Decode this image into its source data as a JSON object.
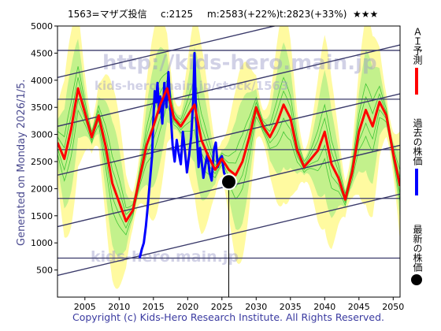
{
  "header": {
    "code_name": "1563=マザズ投信",
    "current": "c:2125",
    "mid": "m:2583(+22%)",
    "target": "t:2823(+33%)",
    "stars": "★★★"
  },
  "side_left": "Generated on Monday 2026/1/5.",
  "watermarks": [
    "http://kids-hero.main.jp",
    "kids-hero.main.jp/stock/1563",
    "kids-hero.main.jp"
  ],
  "legend": {
    "ai": "ＡＩ予測",
    "past": "過去の株価",
    "latest": "最新の株価"
  },
  "footer": "Copyright (c) Kids-Hero Research Institute. All Rights Reserved.",
  "colors": {
    "ai": "#ff0000",
    "past": "#0000ff",
    "latest": "#000000",
    "band_light": "#fffaa0",
    "band_green": "#b8ee88",
    "band_line": "#22bb22",
    "trend": "#3a3a6a",
    "grid": "#555588"
  },
  "chart_data": {
    "type": "line",
    "xlim": [
      2001,
      2051
    ],
    "ylim": [
      0,
      5000
    ],
    "x_ticks": [
      2005,
      2010,
      2015,
      2020,
      2025,
      2030,
      2035,
      2040,
      2045,
      2050
    ],
    "y_ticks": [
      500,
      1000,
      1500,
      2000,
      2500,
      3000,
      3500,
      4000,
      4500,
      5000
    ],
    "latest_point": {
      "x": 2026.0,
      "y": 2125
    },
    "series": [
      {
        "key": "past",
        "x": [
          2013.0,
          2013.3,
          2013.6,
          2013.9,
          2014.2,
          2014.5,
          2014.8,
          2015.0,
          2015.2,
          2015.4,
          2015.6,
          2015.8,
          2016.0,
          2016.3,
          2016.6,
          2016.9,
          2017.2,
          2017.5,
          2017.8,
          2018.1,
          2018.4,
          2018.7,
          2019.0,
          2019.3,
          2019.6,
          2019.9,
          2020.2,
          2020.5,
          2020.8,
          2021.0,
          2021.2,
          2021.4,
          2021.6,
          2021.8,
          2022.0,
          2022.3,
          2022.6,
          2022.9,
          2023.2,
          2023.5,
          2023.8,
          2024.1,
          2024.4,
          2024.7,
          2025.0,
          2025.3,
          2025.6,
          2026.0
        ],
        "values": [
          720,
          880,
          1000,
          1300,
          1700,
          2150,
          2600,
          3300,
          3800,
          3600,
          3950,
          3400,
          3700,
          3200,
          3950,
          3500,
          4150,
          3400,
          2800,
          2500,
          2900,
          2650,
          2450,
          3050,
          2700,
          2300,
          2600,
          2950,
          3600,
          4500,
          3500,
          2850,
          2400,
          2750,
          2550,
          2200,
          2450,
          2650,
          2300,
          2150,
          2700,
          2850,
          2400,
          2550,
          2600,
          2300,
          2200,
          2125
        ]
      },
      {
        "key": "ai",
        "x": [
          2001,
          2002,
          2003,
          2004,
          2005,
          2006,
          2007,
          2008,
          2009,
          2010,
          2011,
          2012,
          2013,
          2014,
          2015,
          2016,
          2017,
          2018,
          2019,
          2020,
          2021,
          2022,
          2023,
          2024,
          2025,
          2026,
          2027,
          2028,
          2029,
          2030,
          2031,
          2032,
          2033,
          2034,
          2035,
          2036,
          2037,
          2038,
          2039,
          2040,
          2041,
          2042,
          2043,
          2044,
          2045,
          2046,
          2047,
          2048,
          2049,
          2050,
          2051
        ],
        "values": [
          2850,
          2550,
          3100,
          3850,
          3400,
          2950,
          3350,
          2800,
          2100,
          1750,
          1400,
          1600,
          2200,
          2800,
          3150,
          3550,
          3850,
          3300,
          3150,
          3350,
          3550,
          2900,
          2600,
          2350,
          2550,
          2350,
          2250,
          2500,
          2950,
          3500,
          3150,
          2950,
          3200,
          3550,
          3300,
          2700,
          2400,
          2550,
          2700,
          3050,
          2450,
          2200,
          1800,
          2300,
          3050,
          3450,
          3150,
          3600,
          3350,
          2650,
          2050
        ]
      }
    ],
    "trend_lines": [
      {
        "x": [
          2001,
          2051
        ],
        "y": [
          400,
          1900
        ]
      },
      {
        "x": [
          2001,
          2051
        ],
        "y": [
          1300,
          2800
        ]
      },
      {
        "x": [
          2001,
          2051
        ],
        "y": [
          2250,
          3750
        ]
      },
      {
        "x": [
          2001,
          2051
        ],
        "y": [
          3150,
          4650
        ]
      },
      {
        "x": [
          2001,
          2051
        ],
        "y": [
          4050,
          5550
        ]
      }
    ],
    "horizontal_lines": [
      720,
      1820,
      2720,
      3650,
      4550
    ]
  }
}
